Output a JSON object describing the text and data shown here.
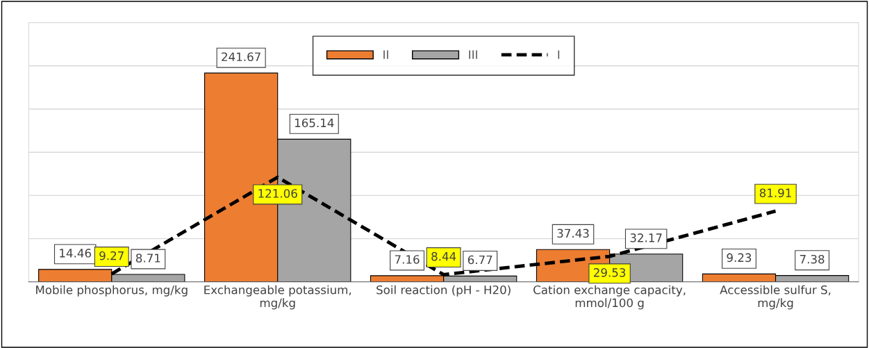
{
  "chart_data": {
    "type": "bar",
    "categories": [
      "Mobile phosphorus, mg/kg",
      "Exchangeable potassium, mg/kg",
      "Soil reaction (pH - H20)",
      "Cation exchange capacity, mmol/100 g",
      "Accessible sulfur S, mg/kg"
    ],
    "series": [
      {
        "name": "II",
        "color": "#ed7d31",
        "values": [
          14.46,
          241.67,
          7.16,
          37.43,
          9.23
        ]
      },
      {
        "name": "III",
        "color": "#a5a5a5",
        "values": [
          8.71,
          165.14,
          6.77,
          32.17,
          7.38
        ]
      },
      {
        "name": "I",
        "type": "line",
        "color": "#000000",
        "line_style": "dashed",
        "values": [
          9.27,
          121.06,
          8.44,
          29.53,
          81.91
        ]
      }
    ],
    "ylim": [
      0,
      300
    ],
    "yticks": [
      {
        "value": 0,
        "label": null
      },
      {
        "value": 50,
        "label": null
      },
      {
        "value": 100,
        "label": null
      },
      {
        "value": 150,
        "label": null
      },
      {
        "value": 200,
        "label": null
      },
      {
        "value": 250,
        "label": null
      },
      {
        "value": 300,
        "label": null
      }
    ],
    "tick_labels": "x",
    "grid": "y",
    "legend": "top",
    "data_labels": true
  }
}
